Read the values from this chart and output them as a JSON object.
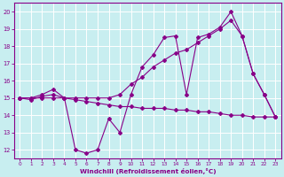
{
  "xlabel": "Windchill (Refroidissement éolien,°C)",
  "background_color": "#c8eef0",
  "grid_color": "#aadddd",
  "line_color": "#880088",
  "xlim": [
    -0.5,
    23.5
  ],
  "ylim": [
    11.5,
    20.5
  ],
  "xticks": [
    0,
    1,
    2,
    3,
    4,
    5,
    6,
    7,
    8,
    9,
    10,
    11,
    12,
    13,
    14,
    15,
    16,
    17,
    18,
    19,
    20,
    21,
    22,
    23
  ],
  "yticks": [
    12,
    13,
    14,
    15,
    16,
    17,
    18,
    19,
    20
  ],
  "line1_x": [
    0,
    1,
    2,
    3,
    4,
    5,
    6,
    7,
    8,
    9,
    10,
    11,
    12,
    13,
    14,
    15,
    16,
    17,
    18,
    19,
    20,
    21,
    22,
    23
  ],
  "line1_y": [
    15.0,
    14.9,
    15.1,
    15.2,
    15.0,
    12.0,
    11.8,
    12.0,
    13.8,
    13.0,
    15.2,
    16.8,
    17.5,
    18.5,
    18.6,
    15.2,
    18.5,
    18.7,
    19.1,
    20.0,
    18.6,
    16.4,
    15.2,
    13.9
  ],
  "line2_x": [
    0,
    1,
    2,
    3,
    4,
    5,
    6,
    7,
    8,
    9,
    10,
    11,
    12,
    13,
    14,
    15,
    16,
    17,
    18,
    19,
    20,
    21,
    22,
    23
  ],
  "line2_y": [
    15.0,
    15.0,
    15.2,
    15.5,
    15.0,
    15.0,
    15.0,
    15.0,
    15.0,
    15.2,
    15.8,
    16.2,
    16.8,
    17.2,
    17.6,
    17.8,
    18.2,
    18.6,
    19.0,
    19.5,
    18.6,
    16.4,
    15.2,
    13.9
  ],
  "line3_x": [
    0,
    1,
    2,
    3,
    4,
    5,
    6,
    7,
    8,
    9,
    10,
    11,
    12,
    13,
    14,
    15,
    16,
    17,
    18,
    19,
    20,
    21,
    22,
    23
  ],
  "line3_y": [
    15.0,
    15.0,
    15.0,
    15.0,
    15.0,
    14.9,
    14.8,
    14.7,
    14.6,
    14.5,
    14.5,
    14.4,
    14.4,
    14.4,
    14.3,
    14.3,
    14.2,
    14.2,
    14.1,
    14.0,
    14.0,
    13.9,
    13.9,
    13.9
  ]
}
